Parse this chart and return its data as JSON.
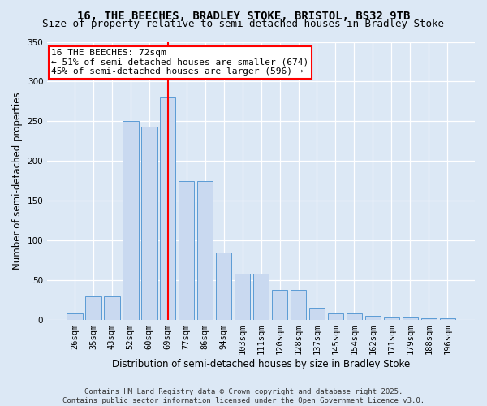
{
  "title_line1": "16, THE BEECHES, BRADLEY STOKE, BRISTOL, BS32 9TB",
  "title_line2": "Size of property relative to semi-detached houses in Bradley Stoke",
  "xlabel": "Distribution of semi-detached houses by size in Bradley Stoke",
  "ylabel": "Number of semi-detached properties",
  "categories": [
    "26sqm",
    "35sqm",
    "43sqm",
    "52sqm",
    "60sqm",
    "69sqm",
    "77sqm",
    "86sqm",
    "94sqm",
    "103sqm",
    "111sqm",
    "120sqm",
    "128sqm",
    "137sqm",
    "145sqm",
    "154sqm",
    "162sqm",
    "171sqm",
    "179sqm",
    "188sqm",
    "196sqm"
  ],
  "values": [
    8,
    30,
    30,
    250,
    243,
    280,
    175,
    175,
    85,
    58,
    58,
    38,
    38,
    15,
    8,
    8,
    5,
    3,
    3,
    2,
    2
  ],
  "bar_color": "#c9d9f0",
  "bar_edge_color": "#5b9bd5",
  "vline_x_idx": 5,
  "vline_color": "red",
  "annotation_text": "16 THE BEECHES: 72sqm\n← 51% of semi-detached houses are smaller (674)\n45% of semi-detached houses are larger (596) →",
  "annotation_box_color": "white",
  "annotation_box_edge_color": "red",
  "ylim": [
    0,
    350
  ],
  "yticks": [
    0,
    50,
    100,
    150,
    200,
    250,
    300,
    350
  ],
  "background_color": "#dce8f5",
  "footer_text": "Contains HM Land Registry data © Crown copyright and database right 2025.\nContains public sector information licensed under the Open Government Licence v3.0.",
  "title_fontsize": 10,
  "subtitle_fontsize": 9,
  "axis_label_fontsize": 8.5,
  "tick_fontsize": 7.5,
  "annotation_fontsize": 8,
  "footer_fontsize": 6.5
}
